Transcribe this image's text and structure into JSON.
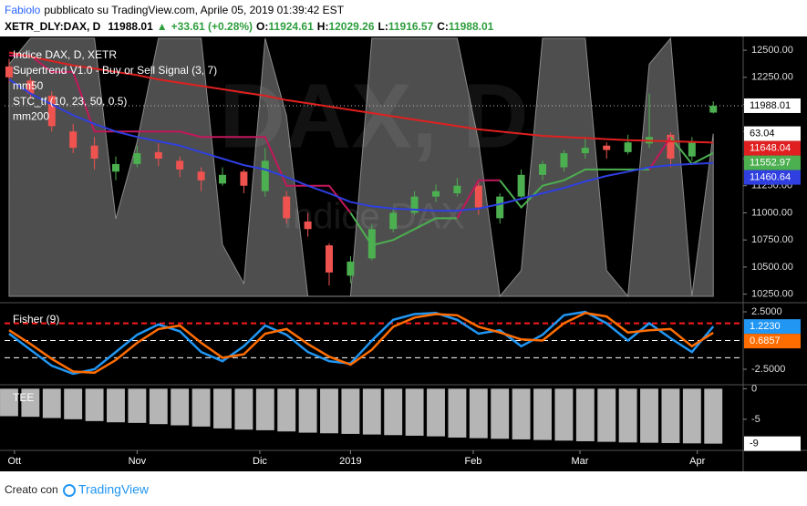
{
  "header": {
    "author": "Fabiolo",
    "published": "pubblicato su TradingView.com, Aprile 05, 2019 01:39:42 EST",
    "symbol": "XETR_DLY:DAX, D",
    "arrow": "▲",
    "change": "+33.61 (+0.28%)",
    "o": "O:",
    "h": "H:",
    "l": "L:",
    "c": "C:"
  },
  "footer": {
    "made_with": "Creato con",
    "brand": "TradingView"
  },
  "chart_data": [
    {
      "type": "candlestick",
      "title": "Indice DAX, D, XETR",
      "watermark": {
        "title": "DAX, D",
        "subtitle": "Indice DAX"
      },
      "x": [
        0,
        4,
        8,
        12,
        16,
        20,
        24,
        28,
        32,
        36,
        40,
        44,
        48,
        52,
        56,
        60,
        64,
        68,
        72,
        76,
        80,
        84,
        88,
        92,
        96,
        100,
        104,
        108,
        112,
        116,
        120,
        124,
        128,
        132
      ],
      "open": [
        12350,
        12220,
        12080,
        11750,
        11620,
        11380,
        11450,
        11560,
        11480,
        11380,
        11270,
        11380,
        11200,
        11150,
        10920,
        10700,
        10420,
        10580,
        10850,
        11000,
        11150,
        11180,
        11250,
        10950,
        11150,
        11350,
        11420,
        11550,
        11620,
        11560,
        11640,
        11720,
        11520,
        11924.61
      ],
      "high": [
        12420,
        12250,
        12120,
        11820,
        11700,
        11520,
        11620,
        11640,
        11520,
        11420,
        11420,
        11400,
        11600,
        11200,
        11000,
        10720,
        10600,
        10900,
        11050,
        11200,
        11260,
        11320,
        11280,
        11180,
        11400,
        11480,
        11580,
        11700,
        11650,
        11720,
        12100,
        11740,
        11700,
        12029.26
      ],
      "low": [
        12200,
        12050,
        11750,
        11550,
        11400,
        11300,
        11420,
        11430,
        11330,
        11200,
        11250,
        11180,
        11150,
        10900,
        10780,
        10330,
        10350,
        10560,
        10820,
        10980,
        11100,
        11150,
        10980,
        10900,
        11120,
        11300,
        11380,
        11500,
        11500,
        11540,
        11600,
        11420,
        11480,
        11916.57
      ],
      "close": [
        12250,
        12100,
        11800,
        11600,
        11500,
        11450,
        11550,
        11500,
        11400,
        11300,
        11350,
        11250,
        11480,
        10950,
        10850,
        10450,
        10550,
        10850,
        11000,
        11150,
        11200,
        11250,
        11050,
        11150,
        11350,
        11450,
        11550,
        11600,
        11580,
        11650,
        11700,
        11500,
        11650,
        11988.01
      ],
      "up_color": "#4caf50",
      "down_color": "#ef5350",
      "series": [
        {
          "name": "Supertrend V1.0 - Buy or Sell Signal (3, 7)",
          "color_up": "#4caf50",
          "color_down": "#c2185b",
          "values": [
            12450,
            12450,
            12300,
            12300,
            11750,
            11750,
            11750,
            11750,
            11750,
            11700,
            11700,
            11700,
            11700,
            11250,
            11250,
            11250,
            11000,
            10700,
            10750,
            10850,
            10950,
            10950,
            11300,
            11300,
            11050,
            11250,
            11300,
            11400,
            11400,
            11400,
            11400,
            11700,
            11450,
            11552.97
          ]
        },
        {
          "name": "mm50",
          "color": "#2f3fe0",
          "values": [
            12230,
            12100,
            12000,
            11900,
            11820,
            11750,
            11700,
            11660,
            11620,
            11560,
            11500,
            11440,
            11400,
            11330,
            11250,
            11180,
            11100,
            11060,
            11040,
            11030,
            11020,
            11020,
            11040,
            11080,
            11130,
            11180,
            11230,
            11290,
            11340,
            11380,
            11420,
            11440,
            11450,
            11460.64
          ]
        },
        {
          "name": "STC_tf (10, 23, 50, 0.5)",
          "color": "#5c5c5c",
          "axis": "y2",
          "values": [
            90,
            100,
            100,
            100,
            100,
            30,
            60,
            100,
            100,
            100,
            20,
            5,
            100,
            70,
            0,
            0,
            0,
            100,
            100,
            100,
            100,
            100,
            60,
            0,
            10,
            100,
            100,
            100,
            10,
            0,
            90,
            100,
            0,
            63.04
          ]
        },
        {
          "name": "mm200",
          "color": "#e02020",
          "values": [
            12480,
            12440,
            12400,
            12360,
            12330,
            12300,
            12270,
            12230,
            12200,
            12170,
            12140,
            12110,
            12080,
            12040,
            12010,
            11980,
            11950,
            11920,
            11890,
            11860,
            11830,
            11800,
            11770,
            11750,
            11730,
            11710,
            11700,
            11690,
            11680,
            11670,
            11665,
            11660,
            11655,
            11648.04
          ]
        }
      ],
      "xlim": [
        -0.85,
        137.6
      ],
      "xticks": [
        {
          "value": 1,
          "label": "Ott"
        },
        {
          "value": 24,
          "label": "Nov"
        },
        {
          "value": 47,
          "label": "Dic"
        },
        {
          "value": 64,
          "label": "2019"
        },
        {
          "value": 87,
          "label": "Feb"
        },
        {
          "value": 107,
          "label": "Mar"
        },
        {
          "value": 129,
          "label": "Apr"
        }
      ],
      "ylim": [
        10230,
        12610
      ],
      "yticks": [
        {
          "value": 12500,
          "label": "12500.00"
        },
        {
          "value": 12250,
          "label": "12250.00"
        },
        {
          "value": 12000,
          "label": "12000.00"
        },
        {
          "value": 11750,
          "label": "11750.00"
        },
        {
          "value": 11500,
          "label": "11500.00"
        },
        {
          "value": 11250,
          "label": "11250.00"
        },
        {
          "value": 11000,
          "label": "11000.00"
        },
        {
          "value": 10750,
          "label": "10750.00"
        },
        {
          "value": 10500,
          "label": "10500.00"
        },
        {
          "value": 10250,
          "label": "10250.00"
        }
      ],
      "y2lim": [
        0,
        100
      ]
    },
    {
      "type": "line",
      "title": "Fisher (9)",
      "x": [
        0,
        4,
        8,
        12,
        16,
        20,
        24,
        28,
        32,
        36,
        40,
        44,
        48,
        52,
        56,
        60,
        64,
        68,
        72,
        76,
        80,
        84,
        88,
        92,
        96,
        100,
        104,
        108,
        112,
        116,
        120,
        124,
        128,
        132
      ],
      "xlim": [
        -0.85,
        137.6
      ],
      "ylim": [
        -3.69,
        2.82
      ],
      "yticks": [
        {
          "value": 2.5,
          "label": "2.5000"
        },
        {
          "value": -2.5,
          "label": "-2.5000"
        }
      ],
      "levels": [
        {
          "value": 1.5,
          "color": "#ff1a1a"
        },
        {
          "value": 0,
          "color": "#ffffff"
        },
        {
          "value": -1.5,
          "color": "#ffffff"
        }
      ],
      "series": [
        {
          "color": "#2196f3",
          "values": [
            0.6,
            -0.8,
            -2.2,
            -2.9,
            -2.5,
            -1.0,
            0.5,
            1.4,
            0.8,
            -1.0,
            -1.8,
            -0.5,
            1.3,
            0.5,
            -1.0,
            -1.8,
            -2.0,
            0.0,
            1.8,
            2.3,
            2.4,
            1.8,
            0.6,
            0.9,
            -0.5,
            0.5,
            2.2,
            2.5,
            1.5,
            0.0,
            1.5,
            0.2,
            -1.0,
            1.223
          ],
          "value_labels": [
            null,
            null,
            null,
            null,
            null,
            null,
            null,
            null,
            null,
            null,
            null,
            null,
            null,
            null,
            null,
            null,
            null,
            null,
            null,
            null,
            null,
            null,
            null,
            null,
            null,
            null,
            null,
            null,
            null,
            null,
            null,
            null,
            null,
            "1.2230"
          ]
        },
        {
          "color": "#ff6d00",
          "values": [
            0.9,
            -0.3,
            -1.6,
            -2.7,
            -2.8,
            -1.7,
            -0.2,
            1.0,
            1.3,
            -0.2,
            -1.5,
            -1.2,
            0.6,
            1.0,
            -0.3,
            -1.4,
            -2.1,
            -0.8,
            1.2,
            2.0,
            2.3,
            2.2,
            1.2,
            0.7,
            0.1,
            0.0,
            1.5,
            2.4,
            2.1,
            0.7,
            0.9,
            1.0,
            -0.5,
            0.6857
          ],
          "value_labels": [
            null,
            null,
            null,
            null,
            null,
            null,
            null,
            null,
            null,
            null,
            null,
            null,
            null,
            null,
            null,
            null,
            null,
            null,
            null,
            null,
            null,
            null,
            null,
            null,
            null,
            null,
            null,
            null,
            null,
            null,
            null,
            null,
            null,
            "0.6857"
          ]
        }
      ]
    },
    {
      "type": "bar",
      "title": "TEE",
      "x": [
        0,
        4,
        8,
        12,
        16,
        20,
        24,
        28,
        32,
        36,
        40,
        44,
        48,
        52,
        56,
        60,
        64,
        68,
        72,
        76,
        80,
        84,
        88,
        92,
        96,
        100,
        104,
        108,
        112,
        116,
        120,
        124,
        128,
        132
      ],
      "values": [
        -4.5,
        -4.6,
        -4.8,
        -5.0,
        -5.3,
        -5.5,
        -5.6,
        -5.8,
        -6.0,
        -6.2,
        -6.5,
        -6.7,
        -6.8,
        -7.0,
        -7.2,
        -7.3,
        -7.4,
        -7.5,
        -7.6,
        -7.7,
        -7.8,
        -8.0,
        -8.1,
        -8.2,
        -8.3,
        -8.4,
        -8.5,
        -8.6,
        -8.7,
        -8.8,
        -8.85,
        -8.9,
        -8.95,
        -9
      ],
      "color": "#b5b5b5",
      "xlim": [
        -0.85,
        137.6
      ],
      "ylim": [
        -9.8,
        0.5
      ],
      "yticks": [
        0,
        -5
      ]
    }
  ]
}
